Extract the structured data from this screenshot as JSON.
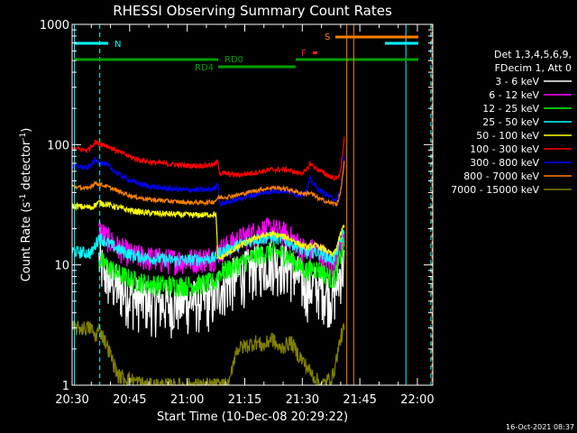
{
  "chart_data": {
    "type": "line",
    "title": "RHESSI Observing Summary Count Rates",
    "xlabel": "Start Time (10-Dec-08 20:29:22)",
    "ylabel": "Count Rate (s",
    "ylabel_sup1": "-1",
    "ylabel_mid": " detector",
    "ylabel_sup2": "-1",
    "ylabel_end": ")",
    "y_scale": "log",
    "ylim": [
      1,
      1000
    ],
    "xlim": [
      0,
      94
    ],
    "y_ticks": [
      {
        "v": 1,
        "label": "1"
      },
      {
        "v": 10,
        "label": "10"
      },
      {
        "v": 100,
        "label": "100"
      },
      {
        "v": 1000,
        "label": "1000"
      }
    ],
    "x_ticks": [
      {
        "t": 0,
        "label": "20:30"
      },
      {
        "t": 15,
        "label": "20:45"
      },
      {
        "t": 30,
        "label": "21:00"
      },
      {
        "t": 45,
        "label": "21:15"
      },
      {
        "t": 60,
        "label": "21:30"
      },
      {
        "t": 75,
        "label": "21:45"
      },
      {
        "t": 90,
        "label": "22:00"
      }
    ],
    "legend_header": [
      "Det 1,3,4,5,6,9,",
      "FDecim 1, Att 0"
    ],
    "legend_position": "right",
    "series": [
      {
        "name": "3 - 6 keV",
        "color": "#ffffff",
        "noise": 0.5,
        "points": [
          [
            7,
            11
          ],
          [
            9,
            8
          ],
          [
            12,
            6.5
          ],
          [
            16,
            5.5
          ],
          [
            20,
            5
          ],
          [
            25,
            4.8
          ],
          [
            30,
            5
          ],
          [
            34,
            5.2
          ],
          [
            37.5,
            5.4
          ],
          [
            38,
            6.5
          ],
          [
            43,
            8
          ],
          [
            48,
            10
          ],
          [
            52,
            11
          ],
          [
            56,
            10
          ],
          [
            59,
            8
          ],
          [
            61,
            6.5
          ],
          [
            63,
            6.8
          ],
          [
            65,
            6.5
          ],
          [
            68,
            5.5
          ],
          [
            69,
            7
          ],
          [
            70,
            9
          ],
          [
            71,
            10
          ]
        ]
      },
      {
        "name": "6 - 12 keV",
        "color": "#ff00ff",
        "noise": 0.25,
        "points": [
          [
            7,
            20
          ],
          [
            9,
            17
          ],
          [
            12,
            14
          ],
          [
            16,
            12
          ],
          [
            20,
            11.5
          ],
          [
            25,
            11
          ],
          [
            30,
            11
          ],
          [
            34,
            11.3
          ],
          [
            37.5,
            11.8
          ],
          [
            38,
            13
          ],
          [
            43,
            16
          ],
          [
            48,
            19
          ],
          [
            52,
            20
          ],
          [
            56,
            18
          ],
          [
            59,
            15
          ],
          [
            61,
            13
          ],
          [
            63,
            13.5
          ],
          [
            65,
            12.5
          ],
          [
            68,
            10
          ],
          [
            69,
            12
          ],
          [
            70,
            15
          ],
          [
            71,
            18
          ]
        ]
      },
      {
        "name": "12 - 25 keV",
        "color": "#00ff00",
        "noise": 0.2,
        "points": [
          [
            7,
            11
          ],
          [
            9,
            10
          ],
          [
            12,
            8.5
          ],
          [
            16,
            7.5
          ],
          [
            20,
            7
          ],
          [
            25,
            6.8
          ],
          [
            30,
            6.8
          ],
          [
            34,
            7
          ],
          [
            37.5,
            7.3
          ],
          [
            38,
            8.5
          ],
          [
            43,
            10
          ],
          [
            48,
            12
          ],
          [
            52,
            13
          ],
          [
            56,
            12
          ],
          [
            59,
            10
          ],
          [
            61,
            9
          ],
          [
            63,
            9.5
          ],
          [
            65,
            9
          ],
          [
            68,
            7.5
          ],
          [
            69,
            9
          ],
          [
            70,
            12
          ],
          [
            71,
            15
          ]
        ]
      },
      {
        "name": "25 - 50 keV",
        "color": "#00ffff",
        "noise": 0.12,
        "points": [
          [
            0,
            13
          ],
          [
            5,
            12.5
          ],
          [
            7,
            17
          ],
          [
            9,
            15.5
          ],
          [
            12,
            13.5
          ],
          [
            16,
            12
          ],
          [
            20,
            11.5
          ],
          [
            25,
            11
          ],
          [
            30,
            11
          ],
          [
            34,
            11.2
          ],
          [
            37.5,
            11.5
          ],
          [
            38,
            12.5
          ],
          [
            43,
            14.5
          ],
          [
            48,
            16.5
          ],
          [
            52,
            17
          ],
          [
            56,
            16
          ],
          [
            59,
            14
          ],
          [
            61,
            12.5
          ],
          [
            63,
            13
          ],
          [
            65,
            12.5
          ],
          [
            68,
            11
          ],
          [
            69,
            13
          ],
          [
            70,
            16
          ],
          [
            71,
            19
          ]
        ]
      },
      {
        "name": "50 - 100 keV",
        "color": "#ffff00",
        "noise": 0.06,
        "points": [
          [
            0,
            31
          ],
          [
            5,
            30
          ],
          [
            7,
            33
          ],
          [
            9,
            32
          ],
          [
            12,
            30
          ],
          [
            16,
            28
          ],
          [
            20,
            27
          ],
          [
            25,
            26.5
          ],
          [
            30,
            26
          ],
          [
            34,
            26
          ],
          [
            37.5,
            26.5
          ],
          [
            38,
            11
          ],
          [
            43,
            14
          ],
          [
            48,
            17
          ],
          [
            52,
            18
          ],
          [
            56,
            17
          ],
          [
            59,
            15
          ],
          [
            61,
            14
          ],
          [
            63,
            14.5
          ],
          [
            65,
            14
          ],
          [
            68,
            12
          ],
          [
            69,
            14
          ],
          [
            70,
            18
          ],
          [
            71,
            22
          ]
        ]
      },
      {
        "name": "100 - 300 keV",
        "color": "#ff0000",
        "noise": 0.05,
        "points": [
          [
            0,
            93
          ],
          [
            4,
            90
          ],
          [
            6,
            105
          ],
          [
            9,
            98
          ],
          [
            12,
            88
          ],
          [
            16,
            77
          ],
          [
            20,
            72
          ],
          [
            25,
            69
          ],
          [
            30,
            67
          ],
          [
            34,
            67
          ],
          [
            37,
            68
          ],
          [
            38,
            72
          ],
          [
            38.5,
            58
          ],
          [
            43,
            56
          ],
          [
            47,
            58
          ],
          [
            52,
            62
          ],
          [
            56,
            62
          ],
          [
            59,
            58
          ],
          [
            61,
            60
          ],
          [
            62,
            70
          ],
          [
            64,
            62
          ],
          [
            67,
            55
          ],
          [
            69,
            52
          ],
          [
            70,
            60
          ],
          [
            71,
            120
          ]
        ]
      },
      {
        "name": "300 - 800 keV",
        "color": "#0000ff",
        "noise": 0.05,
        "points": [
          [
            0,
            67
          ],
          [
            4,
            64
          ],
          [
            6,
            74
          ],
          [
            9,
            68
          ],
          [
            12,
            57
          ],
          [
            16,
            49
          ],
          [
            20,
            45
          ],
          [
            25,
            43
          ],
          [
            30,
            42
          ],
          [
            34,
            42
          ],
          [
            37,
            43
          ],
          [
            38,
            48
          ],
          [
            38.5,
            32
          ],
          [
            43,
            35
          ],
          [
            47,
            38
          ],
          [
            52,
            41
          ],
          [
            56,
            41
          ],
          [
            59,
            38
          ],
          [
            61,
            40
          ],
          [
            62,
            52
          ],
          [
            64,
            43
          ],
          [
            67,
            37
          ],
          [
            69,
            35
          ],
          [
            70,
            42
          ],
          [
            71,
            85
          ]
        ]
      },
      {
        "name": "800 - 7000 keV",
        "color": "#ff8000",
        "noise": 0.04,
        "points": [
          [
            0,
            45
          ],
          [
            4,
            43
          ],
          [
            6,
            48
          ],
          [
            9,
            45
          ],
          [
            12,
            41
          ],
          [
            16,
            37
          ],
          [
            20,
            35
          ],
          [
            25,
            34
          ],
          [
            30,
            33
          ],
          [
            34,
            33
          ],
          [
            37,
            33.5
          ],
          [
            38,
            36
          ],
          [
            43,
            38
          ],
          [
            47,
            41
          ],
          [
            52,
            44
          ],
          [
            56,
            43
          ],
          [
            59,
            40
          ],
          [
            61,
            39
          ],
          [
            62,
            40
          ],
          [
            64,
            36
          ],
          [
            67,
            33
          ],
          [
            69,
            32
          ],
          [
            70,
            40
          ],
          [
            71,
            75
          ]
        ]
      },
      {
        "name": "7000 - 15000 keV",
        "color": "#808000",
        "noise": 0.15,
        "points": [
          [
            0,
            3
          ],
          [
            5,
            3
          ],
          [
            6,
            2.5
          ],
          [
            7,
            3
          ],
          [
            9,
            2.2
          ],
          [
            12,
            1.2
          ],
          [
            20,
            1
          ],
          [
            41,
            1
          ],
          [
            42,
            1.6
          ],
          [
            43,
            2
          ],
          [
            48,
            2.3
          ],
          [
            50,
            2.1
          ],
          [
            52,
            2.5
          ],
          [
            54,
            2
          ],
          [
            57,
            2.3
          ],
          [
            59,
            1.8
          ],
          [
            62,
            1.3
          ],
          [
            65,
            1
          ],
          [
            68,
            1.2
          ],
          [
            70,
            2.5
          ],
          [
            71,
            3
          ]
        ]
      }
    ],
    "flag_labels": {
      "n": "N",
      "rd0": "RD0",
      "rd4": "RD4",
      "f": "F",
      "s": "S"
    }
  },
  "timestamp": "16-Oct-2021 08:37"
}
